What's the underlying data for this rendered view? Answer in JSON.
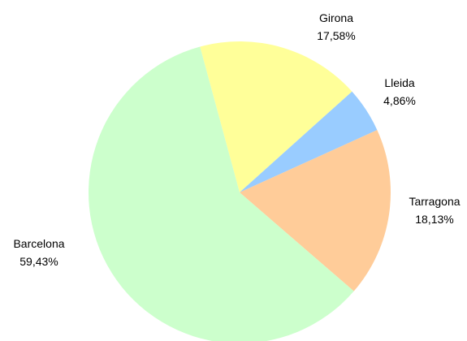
{
  "chart_data": {
    "type": "pie",
    "title": "",
    "slices": [
      {
        "name": "Girona",
        "value_label": "17,58%",
        "value": 17.58,
        "color": "#ffff99"
      },
      {
        "name": "Lleida",
        "value_label": "4,86%",
        "value": 4.86,
        "color": "#99ccff"
      },
      {
        "name": "Tarragona",
        "value_label": "18,13%",
        "value": 18.13,
        "color": "#ffcc99"
      },
      {
        "name": "Barcelona",
        "value_label": "59,43%",
        "value": 59.43,
        "color": "#ccffcc"
      }
    ],
    "legend": "none",
    "labels": "outside"
  }
}
